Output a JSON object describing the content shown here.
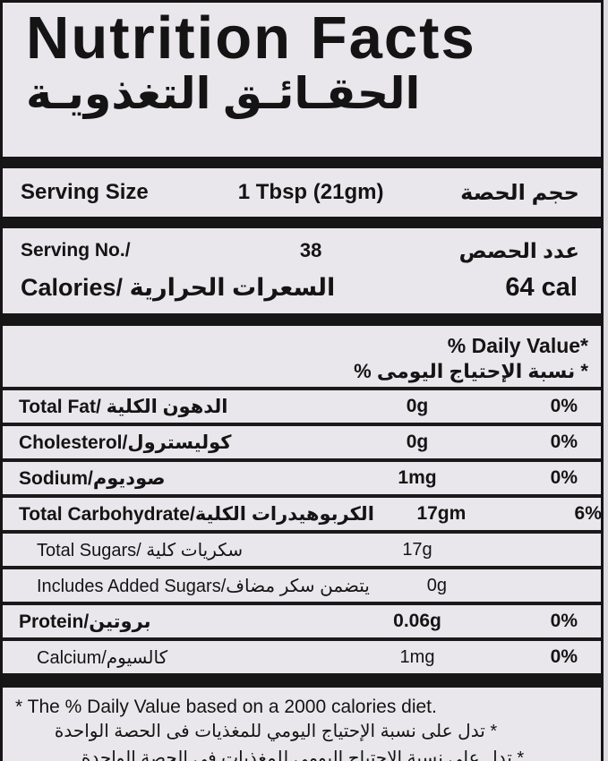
{
  "header": {
    "title_en": "Nutrition Facts",
    "title_ar": "الحقـائـق التغذويـة"
  },
  "serving": {
    "size_label_en": "Serving Size",
    "size_value": "1 Tbsp (21gm)",
    "size_label_ar": "حجم الحصة",
    "no_label_en": "Serving No./",
    "no_value": "38",
    "no_label_ar": "عدد الحصص",
    "calories_label": "Calories/ السعرات الحرارية",
    "calories_value": "64 cal"
  },
  "daily_value_header": {
    "en": "% Daily Value*",
    "ar": "* نسبة الإحتياج اليومى %"
  },
  "nutrients": [
    {
      "label": "Total Fat/ الدهون الكلية",
      "amount": "0g",
      "dv": "0%"
    },
    {
      "label": "Cholesterol/كوليسترول",
      "amount": "0g",
      "dv": "0%"
    },
    {
      "label": "Sodium/صوديوم",
      "amount": "1mg",
      "dv": "0%"
    },
    {
      "label": "Total Carbohydrate/الكربوهيدرات الكلية",
      "amount": "17gm",
      "dv": "6%"
    },
    {
      "label": "Total Sugars/ سكريات كلية",
      "amount": "17g",
      "dv": ""
    },
    {
      "label": "Includes Added Sugars/يتضمن سكر مضاف",
      "amount": "0g",
      "dv": ""
    },
    {
      "label": "Protein/بروتين",
      "amount": "0.06g",
      "dv": "0%"
    },
    {
      "label": "Calcium/كالسيوم",
      "amount": "1mg",
      "dv": "0%"
    }
  ],
  "footnote": {
    "en": "* The % Daily Value based on a 2000 calories diet.",
    "ar": "* تدل على نسبة الإحتياج اليومي للمغذيات فى الحصة الواحدة"
  },
  "colors": {
    "label_background": "#e9e7eb",
    "bar_black": "#161616",
    "text": "#141414"
  }
}
